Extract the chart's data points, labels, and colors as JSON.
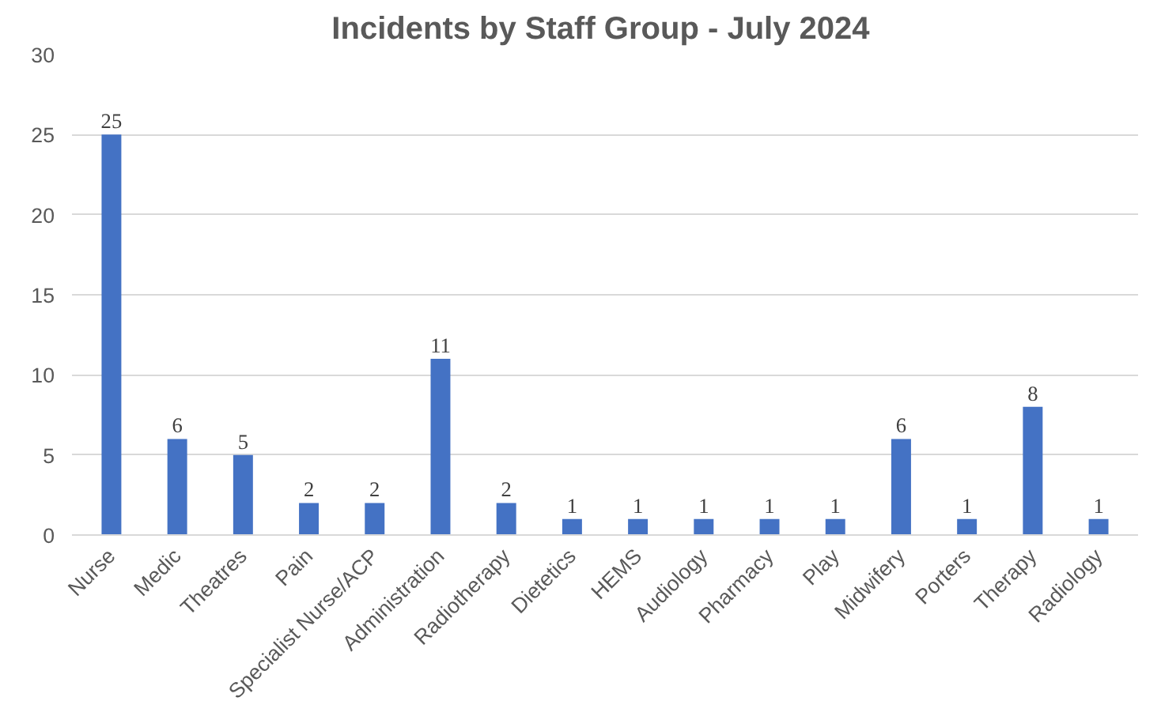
{
  "chart_data": {
    "type": "bar",
    "title": "Incidents by Staff Group  - July 2024",
    "categories": [
      "Nurse",
      "Medic",
      "Theatres",
      "Pain",
      "Specialist Nurse/ACP",
      "Administration",
      "Radiotherapy",
      "Dietetics",
      "HEMS",
      "Audiology",
      "Pharmacy",
      "Play",
      "Midwifery",
      "Porters",
      "Therapy",
      "Radiology"
    ],
    "values": [
      25,
      6,
      5,
      2,
      2,
      11,
      2,
      1,
      1,
      1,
      1,
      1,
      6,
      1,
      8,
      1
    ],
    "color": "#4472c4",
    "ylim": [
      0,
      30
    ],
    "yticks": [
      0,
      5,
      10,
      15,
      20,
      25,
      30
    ],
    "grid": "y",
    "data_labels": true
  }
}
